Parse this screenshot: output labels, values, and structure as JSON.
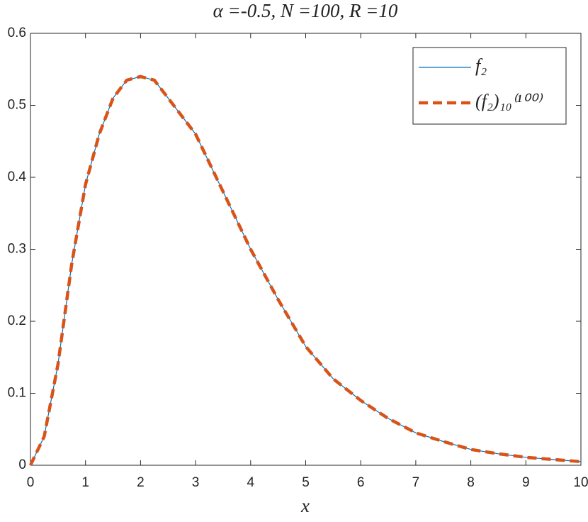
{
  "chart_data": {
    "type": "line",
    "title": "α =-0.5, N =100, R =10",
    "x_label": "x",
    "x": [
      0,
      0.25,
      0.5,
      0.75,
      1,
      1.25,
      1.5,
      1.75,
      2,
      2.25,
      2.5,
      3,
      3.5,
      4,
      4.5,
      5,
      5.5,
      6,
      6.5,
      7,
      7.5,
      8,
      8.5,
      9,
      9.5,
      10
    ],
    "series": [
      {
        "name": "f₂",
        "color": "#0072bd",
        "dashed": false,
        "values": [
          0,
          0.04,
          0.14,
          0.28,
          0.39,
          0.46,
          0.51,
          0.535,
          0.54,
          0.535,
          0.51,
          0.46,
          0.38,
          0.3,
          0.23,
          0.165,
          0.12,
          0.09,
          0.065,
          0.045,
          0.033,
          0.022,
          0.016,
          0.011,
          0.008,
          0.005
        ]
      },
      {
        "name": "(f₂)₁₀⁽¹⁰⁰⁾",
        "color": "#d95319",
        "dashed": true,
        "values": [
          0,
          0.04,
          0.14,
          0.28,
          0.39,
          0.46,
          0.51,
          0.535,
          0.54,
          0.535,
          0.51,
          0.46,
          0.38,
          0.3,
          0.23,
          0.165,
          0.12,
          0.09,
          0.065,
          0.045,
          0.033,
          0.022,
          0.016,
          0.011,
          0.008,
          0.005
        ]
      }
    ],
    "xlim": [
      0,
      10
    ],
    "xticks": [
      0,
      1,
      2,
      3,
      4,
      5,
      6,
      7,
      8,
      9,
      10
    ],
    "ylim": [
      0,
      0.6
    ],
    "yticks": [
      0,
      0.1,
      0.2,
      0.3,
      0.4,
      0.5,
      0.6
    ],
    "grid": false,
    "legend_position": "top-right"
  }
}
